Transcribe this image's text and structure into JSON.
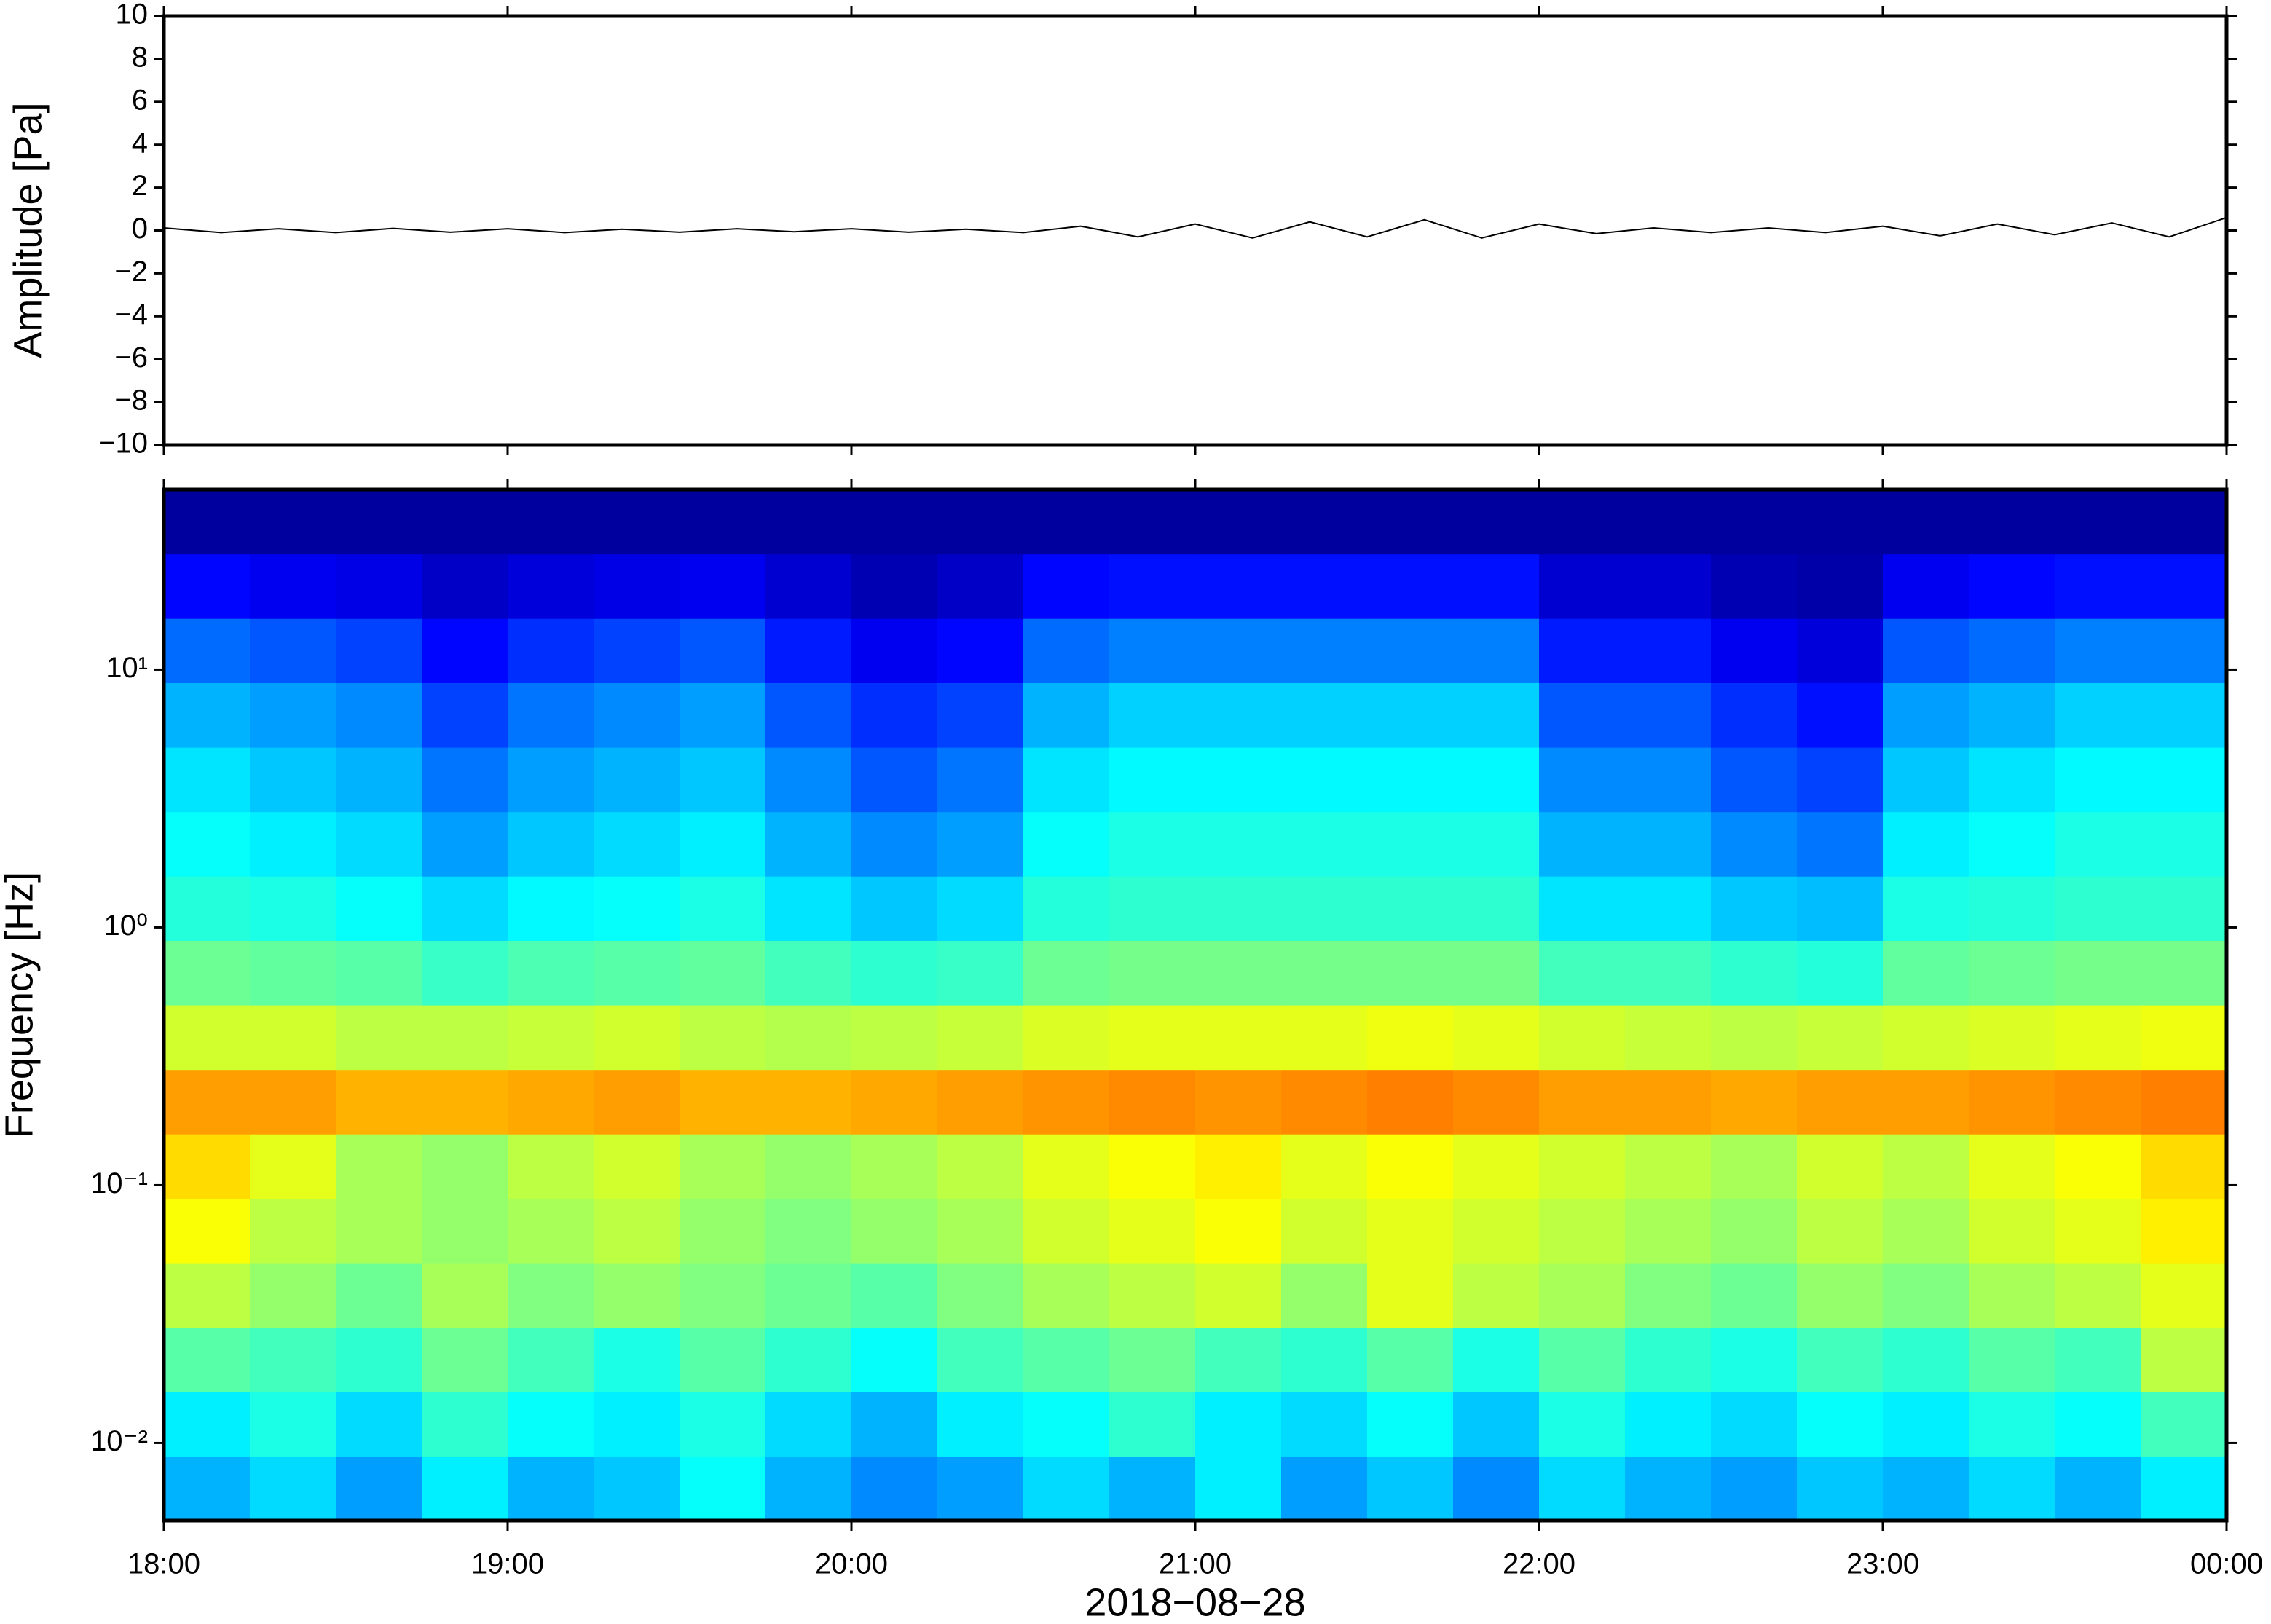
{
  "chart_data": [
    {
      "type": "line",
      "ylabel": "Amplitude [Pa]",
      "color": "#000000",
      "x": [
        "2018-08-28T18:00",
        "2018-08-28T18:10",
        "2018-08-28T18:20",
        "2018-08-28T18:30",
        "2018-08-28T18:40",
        "2018-08-28T18:50",
        "2018-08-28T19:00",
        "2018-08-28T19:10",
        "2018-08-28T19:20",
        "2018-08-28T19:30",
        "2018-08-28T19:40",
        "2018-08-28T19:50",
        "2018-08-28T20:00",
        "2018-08-28T20:10",
        "2018-08-28T20:20",
        "2018-08-28T20:30",
        "2018-08-28T20:40",
        "2018-08-28T20:50",
        "2018-08-28T21:00",
        "2018-08-28T21:10",
        "2018-08-28T21:20",
        "2018-08-28T21:30",
        "2018-08-28T21:40",
        "2018-08-28T21:50",
        "2018-08-28T22:00",
        "2018-08-28T22:10",
        "2018-08-28T22:20",
        "2018-08-28T22:30",
        "2018-08-28T22:40",
        "2018-08-28T22:50",
        "2018-08-28T23:00",
        "2018-08-28T23:10",
        "2018-08-28T23:20",
        "2018-08-28T23:30",
        "2018-08-28T23:40",
        "2018-08-28T23:50",
        "2018-08-29T00:00"
      ],
      "values": [
        0.12,
        -0.1,
        0.08,
        -0.1,
        0.1,
        -0.08,
        0.08,
        -0.1,
        0.06,
        -0.08,
        0.08,
        -0.06,
        0.08,
        -0.08,
        0.06,
        -0.1,
        0.2,
        -0.3,
        0.3,
        -0.35,
        0.4,
        -0.3,
        0.5,
        -0.35,
        0.3,
        -0.15,
        0.12,
        -0.1,
        0.12,
        -0.1,
        0.2,
        -0.25,
        0.3,
        -0.2,
        0.35,
        -0.3,
        0.6
      ],
      "xlim": [
        "2018-08-28T18:00",
        "2018-08-29T00:00"
      ],
      "ylim": [
        -10,
        10
      ],
      "yticks": [
        {
          "value": -10,
          "label": "−10"
        },
        {
          "value": -8,
          "label": "−8"
        },
        {
          "value": -6,
          "label": "−6"
        },
        {
          "value": -4,
          "label": "−4"
        },
        {
          "value": -2,
          "label": "−2"
        },
        0,
        2,
        4,
        6,
        8,
        10
      ]
    },
    {
      "type": "heatmap",
      "ylabel": "Frequency [Hz]",
      "xlabel": "2018−08−28",
      "colormap": "jet",
      "ylog": true,
      "x_bins": [
        "2018-08-28T18:00",
        "2018-08-28T18:15",
        "2018-08-28T18:30",
        "2018-08-28T18:45",
        "2018-08-28T19:00",
        "2018-08-28T19:15",
        "2018-08-28T19:30",
        "2018-08-28T19:45",
        "2018-08-28T20:00",
        "2018-08-28T20:15",
        "2018-08-28T20:30",
        "2018-08-28T20:45",
        "2018-08-28T21:00",
        "2018-08-28T21:15",
        "2018-08-28T21:30",
        "2018-08-28T21:45",
        "2018-08-28T22:00",
        "2018-08-28T22:15",
        "2018-08-28T22:30",
        "2018-08-28T22:45",
        "2018-08-28T23:00",
        "2018-08-28T23:15",
        "2018-08-28T23:30",
        "2018-08-28T23:45",
        "2018-08-29T00:00"
      ],
      "y_bins": [
        0.005,
        0.0089,
        0.0158,
        0.0281,
        0.05,
        0.089,
        0.158,
        0.281,
        0.5,
        0.89,
        1.58,
        2.81,
        5,
        8.9,
        15.8,
        28.1,
        50
      ],
      "values": [
        [
          0.3,
          0.34,
          0.28,
          0.36,
          0.3,
          0.32,
          0.38,
          0.3,
          0.26,
          0.28,
          0.34,
          0.3,
          0.36,
          0.28,
          0.32,
          0.26,
          0.34,
          0.3,
          0.28,
          0.32,
          0.3,
          0.34,
          0.3,
          0.36
        ],
        [
          0.36,
          0.4,
          0.34,
          0.42,
          0.38,
          0.36,
          0.4,
          0.34,
          0.3,
          0.36,
          0.38,
          0.42,
          0.36,
          0.34,
          0.38,
          0.32,
          0.4,
          0.36,
          0.34,
          0.38,
          0.36,
          0.4,
          0.38,
          0.44
        ],
        [
          0.46,
          0.44,
          0.42,
          0.48,
          0.44,
          0.4,
          0.46,
          0.42,
          0.38,
          0.44,
          0.46,
          0.48,
          0.44,
          0.42,
          0.46,
          0.4,
          0.46,
          0.42,
          0.4,
          0.44,
          0.42,
          0.46,
          0.44,
          0.56
        ],
        [
          0.56,
          0.52,
          0.48,
          0.54,
          0.5,
          0.52,
          0.5,
          0.48,
          0.46,
          0.5,
          0.54,
          0.56,
          0.58,
          0.52,
          0.6,
          0.56,
          0.54,
          0.5,
          0.48,
          0.52,
          0.5,
          0.54,
          0.56,
          0.6
        ],
        [
          0.62,
          0.56,
          0.54,
          0.52,
          0.54,
          0.56,
          0.52,
          0.5,
          0.52,
          0.54,
          0.58,
          0.6,
          0.62,
          0.58,
          0.6,
          0.58,
          0.56,
          0.54,
          0.52,
          0.56,
          0.54,
          0.58,
          0.6,
          0.64
        ],
        [
          0.66,
          0.6,
          0.54,
          0.52,
          0.56,
          0.58,
          0.54,
          0.52,
          0.54,
          0.56,
          0.6,
          0.62,
          0.64,
          0.6,
          0.62,
          0.6,
          0.58,
          0.56,
          0.54,
          0.58,
          0.56,
          0.6,
          0.62,
          0.66
        ],
        [
          0.72,
          0.72,
          0.7,
          0.7,
          0.71,
          0.72,
          0.7,
          0.7,
          0.71,
          0.72,
          0.73,
          0.74,
          0.73,
          0.74,
          0.75,
          0.74,
          0.72,
          0.72,
          0.71,
          0.72,
          0.72,
          0.73,
          0.74,
          0.75
        ],
        [
          0.58,
          0.58,
          0.56,
          0.56,
          0.57,
          0.58,
          0.56,
          0.55,
          0.56,
          0.57,
          0.59,
          0.6,
          0.6,
          0.6,
          0.61,
          0.6,
          0.58,
          0.57,
          0.56,
          0.57,
          0.58,
          0.59,
          0.6,
          0.61
        ],
        [
          0.48,
          0.47,
          0.46,
          0.43,
          0.45,
          0.46,
          0.47,
          0.44,
          0.42,
          0.43,
          0.48,
          0.49,
          0.49,
          0.49,
          0.49,
          0.49,
          0.44,
          0.44,
          0.42,
          0.41,
          0.47,
          0.48,
          0.49,
          0.49
        ],
        [
          0.41,
          0.4,
          0.38,
          0.34,
          0.37,
          0.38,
          0.4,
          0.35,
          0.32,
          0.34,
          0.41,
          0.42,
          0.42,
          0.42,
          0.42,
          0.42,
          0.35,
          0.35,
          0.32,
          0.31,
          0.4,
          0.41,
          0.42,
          0.42
        ],
        [
          0.38,
          0.36,
          0.34,
          0.28,
          0.32,
          0.34,
          0.36,
          0.3,
          0.26,
          0.28,
          0.38,
          0.4,
          0.4,
          0.4,
          0.4,
          0.4,
          0.3,
          0.3,
          0.26,
          0.24,
          0.36,
          0.38,
          0.4,
          0.4
        ],
        [
          0.35,
          0.32,
          0.3,
          0.24,
          0.28,
          0.3,
          0.32,
          0.26,
          0.21,
          0.24,
          0.35,
          0.37,
          0.37,
          0.37,
          0.37,
          0.37,
          0.26,
          0.26,
          0.21,
          0.19,
          0.32,
          0.35,
          0.37,
          0.37
        ],
        [
          0.3,
          0.28,
          0.26,
          0.19,
          0.24,
          0.26,
          0.28,
          0.21,
          0.17,
          0.19,
          0.3,
          0.33,
          0.33,
          0.33,
          0.33,
          0.33,
          0.21,
          0.21,
          0.17,
          0.14,
          0.28,
          0.3,
          0.33,
          0.33
        ],
        [
          0.23,
          0.21,
          0.19,
          0.13,
          0.17,
          0.19,
          0.21,
          0.15,
          0.11,
          0.13,
          0.23,
          0.25,
          0.25,
          0.25,
          0.25,
          0.25,
          0.15,
          0.15,
          0.11,
          0.09,
          0.21,
          0.23,
          0.25,
          0.25
        ],
        [
          0.13,
          0.11,
          0.1,
          0.07,
          0.09,
          0.1,
          0.11,
          0.08,
          0.05,
          0.07,
          0.13,
          0.14,
          0.14,
          0.14,
          0.14,
          0.14,
          0.08,
          0.08,
          0.05,
          0.04,
          0.11,
          0.13,
          0.14,
          0.14
        ],
        [
          0.03,
          0.03,
          0.03,
          0.03,
          0.03,
          0.03,
          0.03,
          0.03,
          0.03,
          0.03,
          0.03,
          0.03,
          0.03,
          0.03,
          0.03,
          0.03,
          0.03,
          0.03,
          0.03,
          0.03,
          0.03,
          0.03,
          0.03,
          0.03
        ]
      ],
      "xlim": [
        "2018-08-28T18:00",
        "2018-08-29T00:00"
      ],
      "xticks": [
        {
          "value": "2018-08-28T18:00",
          "label": "18:00"
        },
        {
          "value": "2018-08-28T19:00",
          "label": "19:00"
        },
        {
          "value": "2018-08-28T20:00",
          "label": "20:00"
        },
        {
          "value": "2018-08-28T21:00",
          "label": "21:00"
        },
        {
          "value": "2018-08-28T22:00",
          "label": "22:00"
        },
        {
          "value": "2018-08-28T23:00",
          "label": "23:00"
        },
        {
          "value": "2018-08-29T00:00",
          "label": "00:00"
        }
      ],
      "ylim": [
        0.005,
        50
      ],
      "yticks": [
        {
          "value": 0.01,
          "label": "10⁻²"
        },
        {
          "value": 0.1,
          "label": "10⁻¹"
        },
        {
          "value": 1,
          "label": "10⁰"
        },
        {
          "value": 10,
          "label": "10¹"
        }
      ]
    }
  ]
}
